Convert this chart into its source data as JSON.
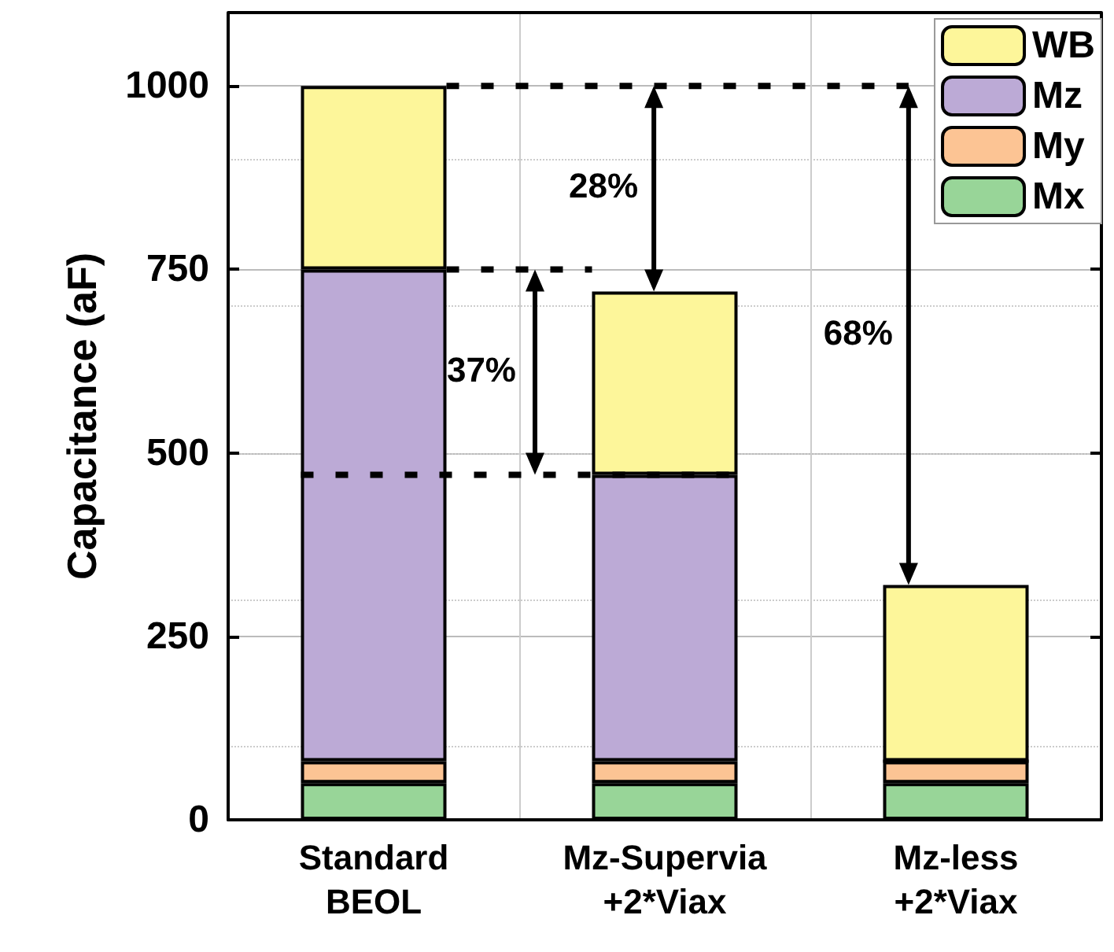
{
  "chart_data": {
    "type": "bar",
    "stacked": true,
    "ylabel": "Capacitance (aF)",
    "categories": [
      "Standard\nBEOL",
      "Mz-Supervia\n+2*Viax",
      "Mz-less\n+2*Viax"
    ],
    "series": [
      {
        "name": "Mx",
        "color": "#98d598",
        "values": [
          50,
          50,
          50
        ]
      },
      {
        "name": "My",
        "color": "#fcc494",
        "values": [
          30,
          30,
          30
        ]
      },
      {
        "name": "Mz",
        "color": "#bcaad6",
        "values": [
          670,
          390,
          0
        ]
      },
      {
        "name": "WB",
        "color": "#fdf69a",
        "values": [
          250,
          250,
          240
        ]
      }
    ],
    "ylim": [
      0,
      1100
    ],
    "yticks": [
      0,
      250,
      500,
      750,
      {
        "value": 1000,
        "label": "1000"
      }
    ],
    "grid": true,
    "legend": "top right",
    "ref_lines": [
      {
        "axis": "y",
        "value": 1000,
        "line_style": "dashed"
      },
      {
        "axis": "y",
        "value": 750,
        "line_style": "dashed"
      },
      {
        "axis": "y",
        "value": 470,
        "line_style": "dashed"
      }
    ],
    "annotations": [
      "28%",
      "37%",
      "68%"
    ]
  }
}
